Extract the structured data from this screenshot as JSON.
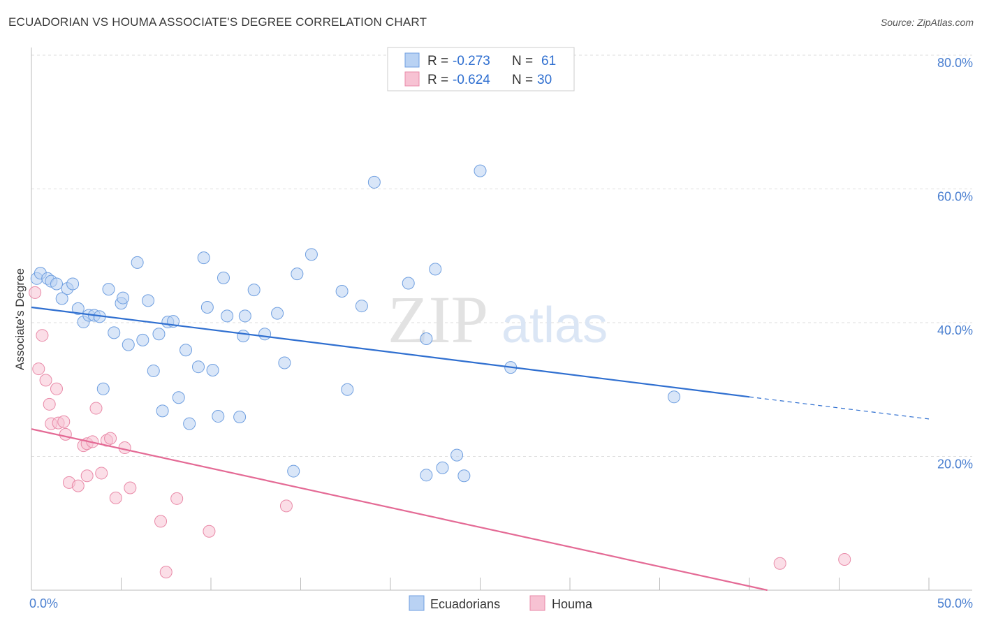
{
  "title": "ECUADORIAN VS HOUMA ASSOCIATE'S DEGREE CORRELATION CHART",
  "source": "Source: ZipAtlas.com",
  "watermark": {
    "zip": "ZIP",
    "atlas": "atlas"
  },
  "colors": {
    "ecuadorians_fill": "#b9d2f3",
    "ecuadorians_stroke": "#6f9fe0",
    "ecuadorians_line": "#2f6fd0",
    "houma_fill": "#f7c2d3",
    "houma_stroke": "#e98aa8",
    "houma_line": "#e46a95",
    "grid": "#dddddd",
    "tick_label": "#4a7fd0"
  },
  "legend": {
    "rows": [
      {
        "r_label": "R =",
        "r_value": "-0.273",
        "n_label": "N =",
        "n_value": "61"
      },
      {
        "r_label": "R =",
        "r_value": "-0.624",
        "n_label": "N =",
        "n_value": "30"
      }
    ]
  },
  "chart_data": {
    "type": "scatter",
    "title": "ECUADORIAN VS HOUMA ASSOCIATE'S DEGREE CORRELATION CHART",
    "xlabel": "",
    "ylabel": "Associate's Degree",
    "xlim": [
      0,
      50
    ],
    "ylim": [
      0,
      80
    ],
    "x_tick_labels": [
      {
        "value": 0,
        "label": "0.0%"
      },
      {
        "value": 50,
        "label": "50.0%"
      }
    ],
    "y_tick_labels": [
      {
        "value": 20,
        "label": "20.0%"
      },
      {
        "value": 40,
        "label": "40.0%"
      },
      {
        "value": 60,
        "label": "60.0%"
      },
      {
        "value": 80,
        "label": "80.0%"
      }
    ],
    "grid": "horizontal dashed",
    "legend_placement": "top-center and bottom-center",
    "series": [
      {
        "name": "Ecuadorians",
        "r": -0.273,
        "n": 61,
        "trend": {
          "x_start": 0,
          "y_start": 42.3,
          "x_solid_end": 40,
          "y_solid_end": 28.9,
          "x_dash_end": 50,
          "y_dash_end": 25.6
        },
        "points": [
          [
            0.3,
            46.6
          ],
          [
            0.5,
            47.4
          ],
          [
            0.9,
            46.6
          ],
          [
            1.1,
            46.2
          ],
          [
            1.4,
            45.8
          ],
          [
            1.7,
            43.6
          ],
          [
            2.0,
            45.1
          ],
          [
            2.3,
            45.8
          ],
          [
            2.6,
            42.1
          ],
          [
            2.9,
            40.1
          ],
          [
            3.2,
            41.1
          ],
          [
            3.5,
            41.1
          ],
          [
            3.8,
            40.9
          ],
          [
            4.0,
            30.1
          ],
          [
            4.3,
            45.0
          ],
          [
            4.6,
            38.5
          ],
          [
            5.0,
            42.9
          ],
          [
            5.1,
            43.7
          ],
          [
            5.4,
            36.7
          ],
          [
            5.9,
            49.0
          ],
          [
            6.2,
            37.4
          ],
          [
            6.5,
            43.3
          ],
          [
            6.8,
            32.8
          ],
          [
            7.1,
            38.3
          ],
          [
            7.3,
            26.8
          ],
          [
            7.6,
            40.1
          ],
          [
            7.9,
            40.2
          ],
          [
            8.2,
            28.8
          ],
          [
            8.6,
            35.9
          ],
          [
            8.8,
            24.9
          ],
          [
            9.3,
            33.4
          ],
          [
            9.6,
            49.7
          ],
          [
            9.8,
            42.3
          ],
          [
            10.1,
            32.9
          ],
          [
            10.4,
            26.0
          ],
          [
            10.7,
            46.7
          ],
          [
            10.9,
            41.0
          ],
          [
            11.6,
            25.9
          ],
          [
            11.8,
            38.0
          ],
          [
            11.9,
            41.0
          ],
          [
            12.4,
            44.9
          ],
          [
            13.0,
            38.3
          ],
          [
            13.7,
            41.4
          ],
          [
            14.1,
            34.0
          ],
          [
            14.6,
            17.8
          ],
          [
            14.8,
            47.3
          ],
          [
            15.6,
            50.2
          ],
          [
            17.3,
            44.7
          ],
          [
            17.6,
            30.0
          ],
          [
            18.4,
            42.5
          ],
          [
            19.1,
            61.0
          ],
          [
            21.0,
            45.9
          ],
          [
            22.0,
            17.2
          ],
          [
            22.0,
            37.6
          ],
          [
            22.5,
            48.0
          ],
          [
            22.9,
            18.3
          ],
          [
            23.7,
            20.2
          ],
          [
            24.1,
            17.1
          ],
          [
            25.0,
            62.7
          ],
          [
            26.7,
            33.3
          ],
          [
            35.8,
            28.9
          ]
        ]
      },
      {
        "name": "Houma",
        "r": -0.624,
        "n": 30,
        "trend": {
          "x_start": 0,
          "y_start": 24.1,
          "x_solid_end": 41,
          "y_solid_end": 0
        },
        "points": [
          [
            0.2,
            44.5
          ],
          [
            0.4,
            33.1
          ],
          [
            0.6,
            38.1
          ],
          [
            0.8,
            31.4
          ],
          [
            1.0,
            27.8
          ],
          [
            1.1,
            24.9
          ],
          [
            1.4,
            30.1
          ],
          [
            1.5,
            25.0
          ],
          [
            1.8,
            25.2
          ],
          [
            1.9,
            23.3
          ],
          [
            2.1,
            16.1
          ],
          [
            2.6,
            15.6
          ],
          [
            2.9,
            21.6
          ],
          [
            3.1,
            21.9
          ],
          [
            3.1,
            17.1
          ],
          [
            3.4,
            22.2
          ],
          [
            3.6,
            27.2
          ],
          [
            3.9,
            17.5
          ],
          [
            4.2,
            22.4
          ],
          [
            4.4,
            22.7
          ],
          [
            4.7,
            13.8
          ],
          [
            5.2,
            21.3
          ],
          [
            5.5,
            15.3
          ],
          [
            7.2,
            10.3
          ],
          [
            7.5,
            2.7
          ],
          [
            8.1,
            13.7
          ],
          [
            9.9,
            8.8
          ],
          [
            14.2,
            12.6
          ],
          [
            41.7,
            4.0
          ],
          [
            45.3,
            4.6
          ]
        ]
      }
    ]
  },
  "bottom_legend": {
    "items": [
      "Ecuadorians",
      "Houma"
    ]
  }
}
